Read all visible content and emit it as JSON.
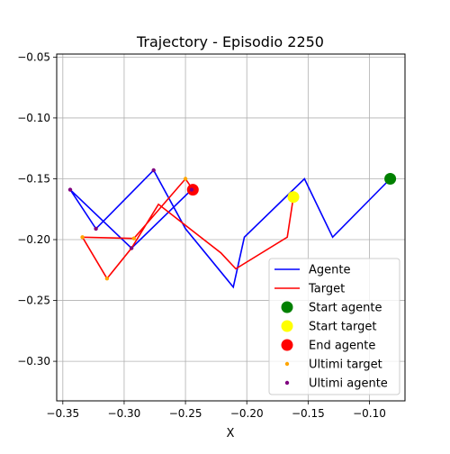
{
  "chart_data": {
    "type": "line",
    "title": "Trajectory - Episodio 2250",
    "xlabel": "X",
    "ylabel": "",
    "xlim": [
      -0.355,
      -0.071
    ],
    "ylim": [
      -0.3325,
      -0.0475
    ],
    "xticks": [
      -0.35,
      -0.3,
      -0.25,
      -0.2,
      -0.15,
      -0.1
    ],
    "xtick_labels": [
      "−0.35",
      "−0.30",
      "−0.25",
      "−0.20",
      "−0.15",
      "−0.10"
    ],
    "yticks": [
      -0.05,
      -0.1,
      -0.15,
      -0.2,
      -0.25,
      -0.3
    ],
    "ytick_labels": [
      "−0.05",
      "−0.10",
      "−0.15",
      "−0.20",
      "−0.25",
      "−0.30"
    ],
    "grid": true,
    "legend_position": "lower-right",
    "series": [
      {
        "name": "Agente",
        "kind": "line",
        "color": "#0000ff",
        "points": [
          [
            -0.083,
            -0.15
          ],
          [
            -0.13,
            -0.198
          ],
          [
            -0.153,
            -0.15
          ],
          [
            -0.202,
            -0.198
          ],
          [
            -0.211,
            -0.239
          ],
          [
            -0.25,
            -0.191
          ],
          [
            -0.276,
            -0.143
          ],
          [
            -0.323,
            -0.191
          ],
          [
            -0.344,
            -0.159
          ],
          [
            -0.294,
            -0.207
          ],
          [
            -0.245,
            -0.159
          ]
        ]
      },
      {
        "name": "Target",
        "kind": "line",
        "color": "#ff0000",
        "points": [
          [
            -0.162,
            -0.165
          ],
          [
            -0.167,
            -0.198
          ],
          [
            -0.209,
            -0.224
          ],
          [
            -0.221,
            -0.211
          ],
          [
            -0.272,
            -0.171
          ],
          [
            -0.294,
            -0.207
          ],
          [
            -0.314,
            -0.232
          ],
          [
            -0.334,
            -0.198
          ],
          [
            -0.292,
            -0.199
          ],
          [
            -0.25,
            -0.15
          ],
          [
            -0.244,
            -0.159
          ]
        ]
      },
      {
        "name": "Start agente",
        "kind": "marker",
        "color": "#008000",
        "points": [
          [
            -0.083,
            -0.15
          ]
        ]
      },
      {
        "name": "Start target",
        "kind": "marker",
        "color": "#ffff00",
        "points": [
          [
            -0.162,
            -0.165
          ]
        ]
      },
      {
        "name": "End agente",
        "kind": "marker",
        "color": "#ff0000",
        "points": [
          [
            -0.244,
            -0.159
          ]
        ]
      },
      {
        "name": "Ultimi target",
        "kind": "small-marker",
        "color": "#ffa500",
        "points": [
          [
            -0.314,
            -0.232
          ],
          [
            -0.334,
            -0.198
          ],
          [
            -0.292,
            -0.199
          ],
          [
            -0.25,
            -0.15
          ],
          [
            -0.294,
            -0.207
          ]
        ]
      },
      {
        "name": "Ultimi agente",
        "kind": "small-marker",
        "color": "#800080",
        "points": [
          [
            -0.276,
            -0.143
          ],
          [
            -0.323,
            -0.191
          ],
          [
            -0.344,
            -0.159
          ],
          [
            -0.294,
            -0.207
          ],
          [
            -0.245,
            -0.159
          ]
        ]
      }
    ]
  }
}
